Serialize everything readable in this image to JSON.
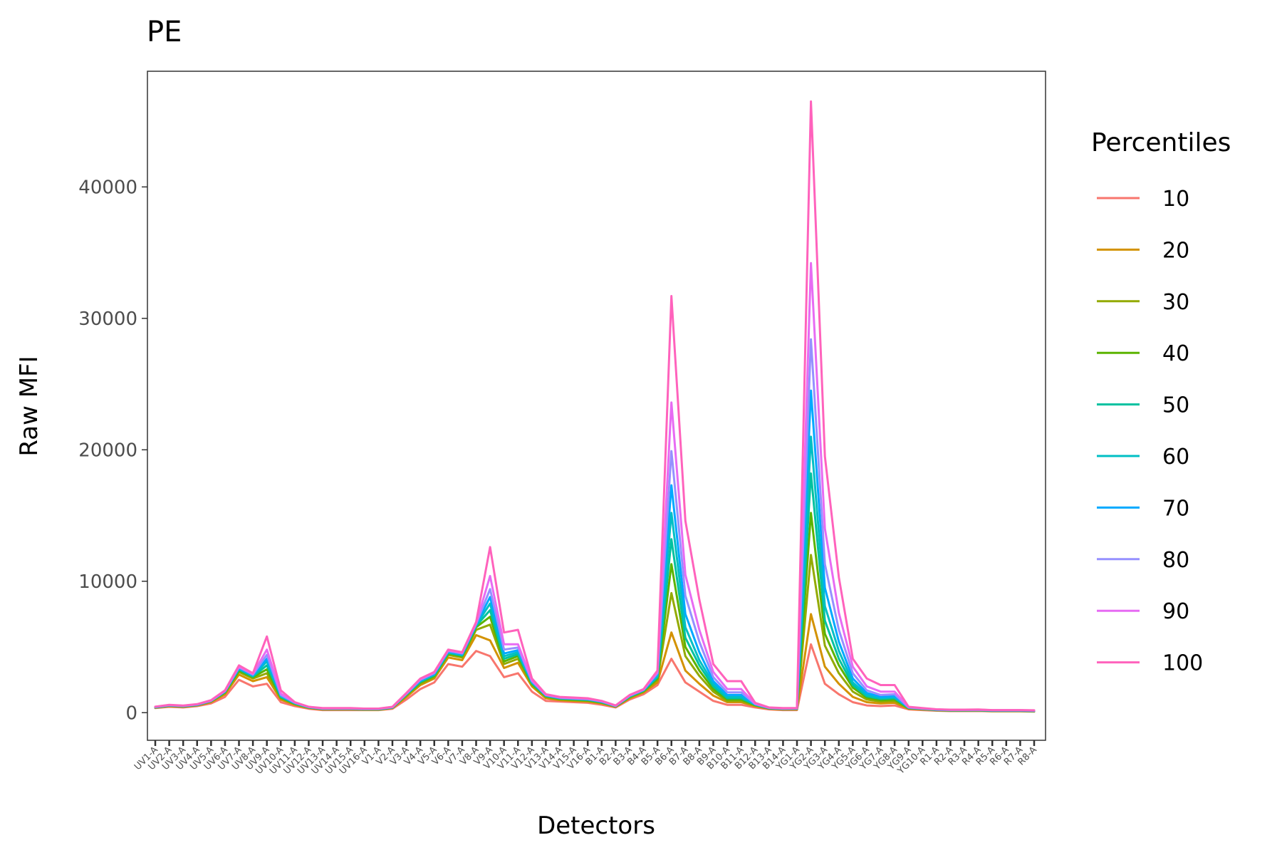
{
  "chart_data": {
    "type": "line",
    "title": "PE",
    "xlabel": "Detectors",
    "ylabel": "Raw MFI",
    "yticks": [
      "0",
      "10000",
      "20000",
      "30000",
      "40000"
    ],
    "ylim": [
      -2100,
      48800
    ],
    "grid": false,
    "legend": {
      "title": "Percentiles",
      "position": "right"
    },
    "categories": [
      "UV1-A",
      "UV2-A",
      "UV3-A",
      "UV4-A",
      "UV5-A",
      "UV6-A",
      "UV7-A",
      "UV8-A",
      "UV9-A",
      "UV10-A",
      "UV11-A",
      "UV12-A",
      "UV13-A",
      "UV14-A",
      "UV15-A",
      "UV16-A",
      "V1-A",
      "V2-A",
      "V3-A",
      "V4-A",
      "V5-A",
      "V6-A",
      "V7-A",
      "V8-A",
      "V9-A",
      "V10-A",
      "V11-A",
      "V12-A",
      "V13-A",
      "V14-A",
      "V15-A",
      "V16-A",
      "B1-A",
      "B2-A",
      "B3-A",
      "B4-A",
      "B5-A",
      "B6-A",
      "B7-A",
      "B8-A",
      "B9-A",
      "B10-A",
      "B11-A",
      "B12-A",
      "B13-A",
      "B14-A",
      "YG1-A",
      "YG2-A",
      "YG3-A",
      "YG4-A",
      "YG5-A",
      "YG6-A",
      "YG7-A",
      "YG8-A",
      "YG9-A",
      "YG10-A",
      "R1-A",
      "R2-A",
      "R3-A",
      "R4-A",
      "R5-A",
      "R6-A",
      "R7-A",
      "R8-A"
    ],
    "series": [
      {
        "name": "10",
        "color": "#F8766D",
        "values": [
          350,
          450,
          400,
          500,
          700,
          1200,
          2500,
          2000,
          2200,
          800,
          500,
          300,
          200,
          200,
          200,
          200,
          200,
          300,
          1000,
          1800,
          2300,
          3700,
          3500,
          4700,
          4300,
          2700,
          3000,
          1600,
          900,
          850,
          800,
          750,
          600,
          400,
          1000,
          1400,
          2100,
          4100,
          2300,
          1600,
          900,
          600,
          600,
          400,
          250,
          200,
          200,
          5200,
          2200,
          1400,
          800,
          550,
          500,
          550,
          250,
          200,
          150,
          120,
          120,
          130,
          100,
          100,
          100,
          80
        ]
      },
      {
        "name": "20",
        "color": "#D39200",
        "values": [
          380,
          500,
          450,
          550,
          800,
          1400,
          2900,
          2400,
          2700,
          1000,
          600,
          350,
          250,
          250,
          250,
          220,
          220,
          350,
          1200,
          2100,
          2600,
          4200,
          4000,
          5900,
          5500,
          3400,
          3800,
          2000,
          1100,
          950,
          900,
          850,
          700,
          450,
          1100,
          1550,
          2300,
          6100,
          3200,
          2200,
          1300,
          800,
          800,
          500,
          300,
          250,
          250,
          7500,
          3500,
          2200,
          1200,
          800,
          700,
          750,
          300,
          250,
          180,
          150,
          150,
          160,
          120,
          120,
          120,
          100
        ]
      },
      {
        "name": "30",
        "color": "#93AA00",
        "values": [
          390,
          520,
          470,
          570,
          850,
          1500,
          3100,
          2600,
          3000,
          1100,
          650,
          380,
          270,
          270,
          270,
          240,
          240,
          370,
          1300,
          2200,
          2700,
          4400,
          4200,
          6300,
          6700,
          3700,
          4100,
          2100,
          1200,
          1000,
          950,
          900,
          750,
          470,
          1150,
          1600,
          2500,
          9100,
          4300,
          2800,
          1600,
          900,
          900,
          550,
          320,
          270,
          270,
          12000,
          5100,
          3000,
          1600,
          1000,
          850,
          900,
          330,
          270,
          190,
          160,
          160,
          170,
          130,
          130,
          130,
          110
        ]
      },
      {
        "name": "40",
        "color": "#5BB300",
        "values": [
          400,
          530,
          480,
          580,
          870,
          1550,
          3200,
          2700,
          3300,
          1150,
          680,
          390,
          280,
          280,
          280,
          250,
          250,
          380,
          1350,
          2300,
          2800,
          4500,
          4300,
          6500,
          7300,
          3900,
          4300,
          2200,
          1250,
          1050,
          1000,
          950,
          780,
          480,
          1200,
          1650,
          2600,
          11300,
          5000,
          3200,
          1800,
          1000,
          1000,
          580,
          330,
          280,
          290,
          15200,
          6000,
          3600,
          1900,
          1150,
          950,
          1000,
          350,
          280,
          200,
          170,
          170,
          180,
          140,
          140,
          140,
          120
        ]
      },
      {
        "name": "50",
        "color": "#00C19F",
        "values": [
          410,
          540,
          490,
          590,
          880,
          1580,
          3300,
          2750,
          3600,
          1200,
          700,
          400,
          290,
          290,
          290,
          260,
          260,
          390,
          1380,
          2350,
          2850,
          4550,
          4350,
          6600,
          7800,
          4100,
          4450,
          2250,
          1280,
          1080,
          1030,
          980,
          800,
          490,
          1230,
          1680,
          2700,
          13200,
          5700,
          3600,
          2000,
          1100,
          1100,
          600,
          340,
          290,
          300,
          18200,
          7000,
          4100,
          2100,
          1250,
          1050,
          1100,
          360,
          290,
          210,
          180,
          180,
          190,
          150,
          150,
          150,
          130
        ]
      },
      {
        "name": "60",
        "color": "#00BFC4",
        "values": [
          420,
          550,
          500,
          600,
          890,
          1600,
          3350,
          2800,
          3900,
          1250,
          720,
          410,
          300,
          300,
          300,
          270,
          270,
          400,
          1400,
          2400,
          2900,
          4600,
          4400,
          6650,
          8300,
          4300,
          4600,
          2300,
          1300,
          1100,
          1050,
          1000,
          820,
          500,
          1250,
          1700,
          2800,
          15200,
          6500,
          4000,
          2200,
          1200,
          1200,
          620,
          350,
          300,
          310,
          21000,
          8100,
          4700,
          2300,
          1350,
          1120,
          1180,
          370,
          300,
          220,
          190,
          190,
          200,
          160,
          160,
          160,
          140
        ]
      },
      {
        "name": "70",
        "color": "#00A9FF",
        "values": [
          430,
          560,
          510,
          610,
          900,
          1620,
          3400,
          2850,
          4100,
          1300,
          740,
          420,
          310,
          310,
          310,
          280,
          280,
          410,
          1420,
          2450,
          2950,
          4650,
          4450,
          6700,
          8800,
          4500,
          4750,
          2350,
          1320,
          1120,
          1070,
          1020,
          840,
          510,
          1270,
          1720,
          2900,
          17300,
          7500,
          4600,
          2400,
          1350,
          1350,
          640,
          360,
          310,
          320,
          24500,
          9500,
          5400,
          2600,
          1500,
          1200,
          1250,
          380,
          310,
          230,
          200,
          200,
          210,
          170,
          170,
          170,
          150
        ]
      },
      {
        "name": "80",
        "color": "#9590FF",
        "values": [
          440,
          570,
          520,
          620,
          910,
          1640,
          3450,
          2900,
          4400,
          1350,
          760,
          430,
          320,
          320,
          320,
          290,
          290,
          420,
          1440,
          2500,
          3000,
          4700,
          4500,
          6750,
          9400,
          4800,
          4950,
          2400,
          1340,
          1140,
          1090,
          1040,
          860,
          520,
          1290,
          1740,
          3000,
          19900,
          8900,
          5400,
          2700,
          1550,
          1550,
          660,
          370,
          320,
          330,
          28400,
          11300,
          6300,
          3000,
          1700,
          1350,
          1400,
          400,
          320,
          240,
          210,
          210,
          220,
          180,
          180,
          180,
          160
        ]
      },
      {
        "name": "90",
        "color": "#E76BF3",
        "values": [
          450,
          580,
          530,
          630,
          920,
          1660,
          3500,
          2950,
          4800,
          1450,
          780,
          440,
          330,
          330,
          330,
          300,
          300,
          430,
          1460,
          2550,
          3050,
          4750,
          4550,
          6800,
          10400,
          5200,
          5200,
          2450,
          1360,
          1160,
          1110,
          1060,
          880,
          530,
          1310,
          1760,
          3100,
          23600,
          10500,
          6300,
          3100,
          1800,
          1800,
          680,
          380,
          330,
          340,
          34200,
          14000,
          7600,
          3500,
          2000,
          1600,
          1600,
          420,
          330,
          250,
          220,
          220,
          230,
          190,
          190,
          190,
          170
        ]
      },
      {
        "name": "100",
        "color": "#FF62BC",
        "values": [
          460,
          600,
          540,
          650,
          950,
          1700,
          3600,
          3000,
          5800,
          1700,
          800,
          450,
          350,
          350,
          350,
          310,
          310,
          450,
          1500,
          2600,
          3100,
          4800,
          4600,
          6900,
          12600,
          6100,
          6300,
          2600,
          1400,
          1200,
          1150,
          1100,
          900,
          550,
          1350,
          1800,
          3200,
          31700,
          14600,
          8600,
          3700,
          2400,
          2400,
          750,
          400,
          350,
          360,
          46500,
          19500,
          10300,
          4100,
          2600,
          2100,
          2100,
          450,
          350,
          260,
          230,
          230,
          240,
          200,
          200,
          200,
          180
        ]
      }
    ]
  }
}
